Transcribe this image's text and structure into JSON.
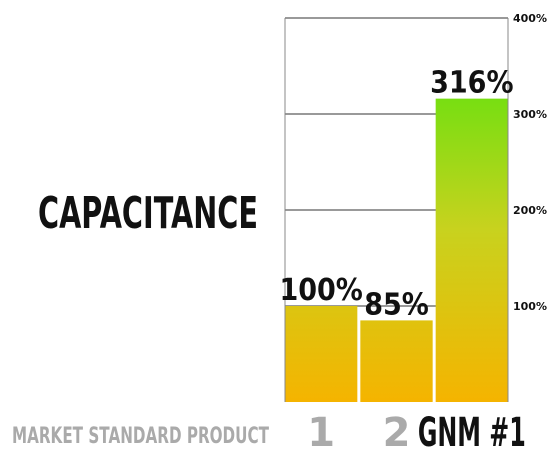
{
  "chart_data": {
    "type": "bar",
    "title": "CAPACITANCE",
    "caption": "MARKET STANDARD PRODUCT",
    "categories": [
      "1",
      "2",
      "GNM #1"
    ],
    "values": [
      100,
      85,
      316
    ],
    "value_labels": [
      "100%",
      "85%",
      "316%"
    ],
    "highlight_category": "GNM #1",
    "ylim": [
      0,
      400
    ],
    "yticks": [
      100,
      200,
      300,
      400
    ],
    "ytick_labels": [
      "100%",
      "200%",
      "300%",
      "400%"
    ],
    "grid": true,
    "y_axis_side": "right",
    "colors": {
      "bar_top": "#46e60a",
      "bar_mid": "#c8d21e",
      "bar_bottom": "#f5b400",
      "grid": "#333333"
    }
  }
}
